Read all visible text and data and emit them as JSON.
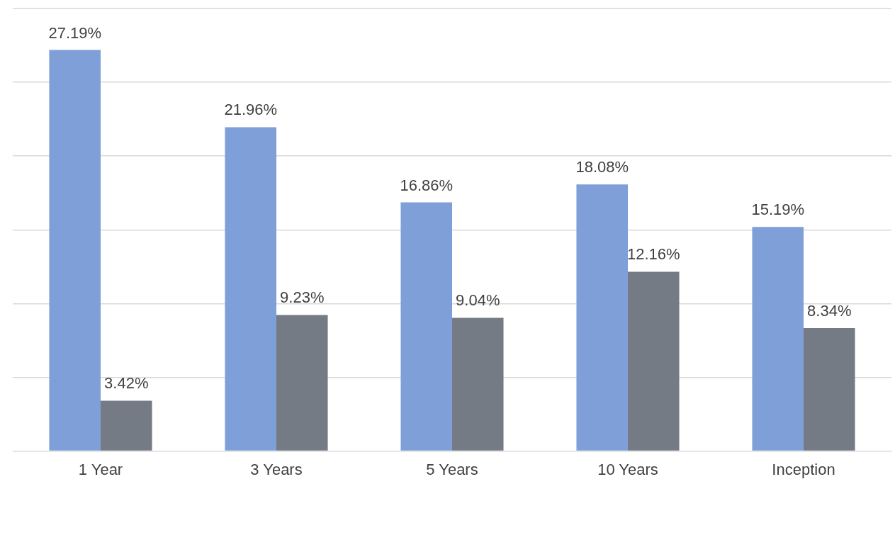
{
  "chart_data": {
    "type": "bar",
    "categories": [
      "1 Year",
      "3 Years",
      "5 Years",
      "10 Years",
      "Inception"
    ],
    "series": [
      {
        "color": "#7f9fd9",
        "values": [
          27.19,
          21.96,
          16.86,
          18.08,
          15.19
        ],
        "value_labels": [
          "27.19%",
          "21.96%",
          "16.86%",
          "18.08%",
          "15.19%"
        ]
      },
      {
        "color": "#757b85",
        "values": [
          3.42,
          9.23,
          9.04,
          12.16,
          8.34
        ],
        "value_labels": [
          "3.42%",
          "9.23%",
          "9.04%",
          "12.16%",
          "8.34%"
        ]
      }
    ],
    "ylim": [
      0,
      30
    ],
    "yticks": [
      {
        "value": 0,
        "label": null
      },
      {
        "value": 5,
        "label": null
      },
      {
        "value": 10,
        "label": null
      },
      {
        "value": 15,
        "label": null
      },
      {
        "value": 20,
        "label": null
      },
      {
        "value": 25,
        "label": null
      },
      {
        "value": 30,
        "label": null
      }
    ],
    "grid": "y",
    "tick_labels": "x"
  }
}
